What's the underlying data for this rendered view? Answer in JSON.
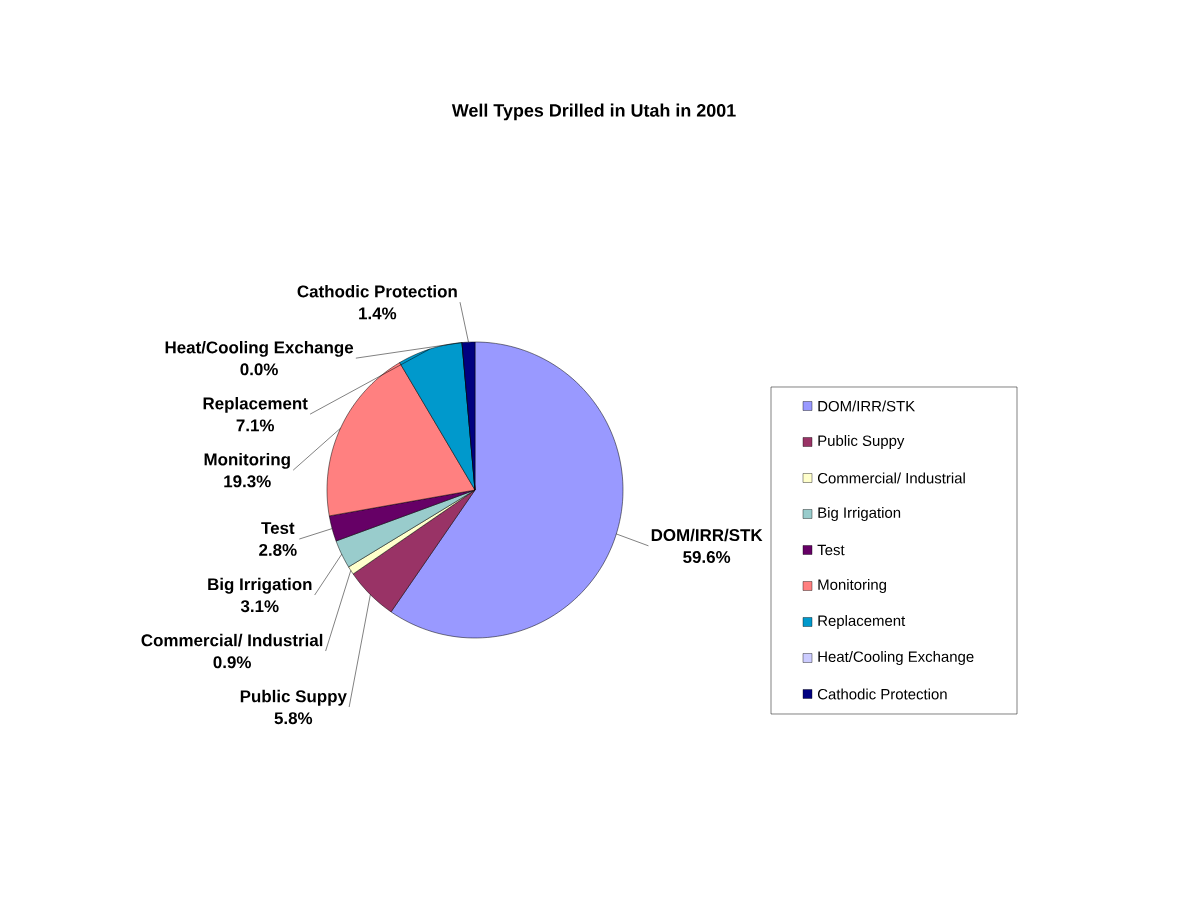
{
  "chart_data": {
    "type": "pie",
    "title": "Well Types Drilled in Utah in 2001",
    "categories": [
      "DOM/IRR/STK",
      "Public Suppy",
      "Commercial/ Industrial",
      "Big Irrigation",
      "Test",
      "Monitoring",
      "Replacement",
      "Heat/Cooling Exchange",
      "Cathodic Protection"
    ],
    "values": [
      59.6,
      5.8,
      0.9,
      3.1,
      2.8,
      19.3,
      7.1,
      0.0,
      1.4
    ],
    "value_labels": [
      "59.6%",
      "5.8%",
      "0.9%",
      "3.1%",
      "2.8%",
      "19.3%",
      "7.1%",
      "0.0%",
      "1.4%"
    ],
    "colors": [
      "#9999ff",
      "#993366",
      "#ffffcc",
      "#99cccc",
      "#660066",
      "#ff8080",
      "#0099cc",
      "#ccccff",
      "#000080"
    ],
    "legend": "right"
  }
}
